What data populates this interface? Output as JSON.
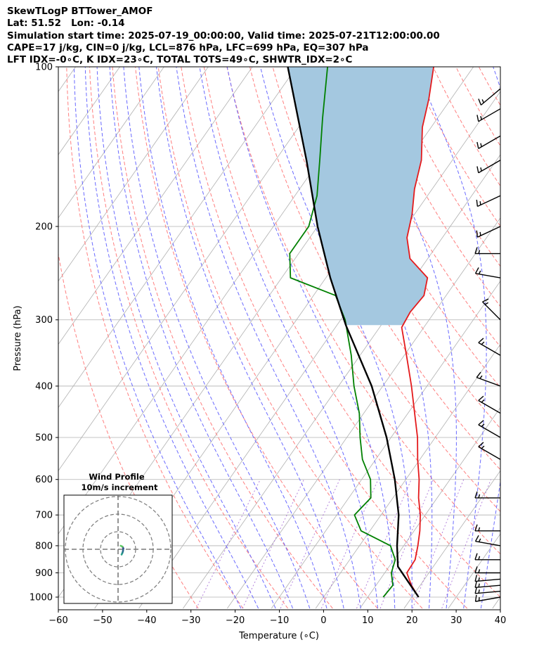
{
  "header": {
    "line1": "SkewTLogP BTTower_AMOF",
    "line2": "Lat: 51.52   Lon: -0.14",
    "line3": "Simulation start time: 2025-07-19_00:00:00, Valid time: 2025-07-21T12:00:00.00",
    "line4": "CAPE=17 j/kg, CIN=0 j/kg, LCL=876 hPa, LFC=699 hPa, EQ=307 hPa",
    "line5": "LFT IDX=-0∘C, K IDX=23∘C, TOTAL TOTS=49∘C, SHWTR_IDX=2∘C"
  },
  "colors": {
    "temperature": "#e41a1c",
    "dewpoint": "#008000",
    "parcel": "#000000",
    "cape_fill": "#a4c8e0",
    "dry_adiabat": "#ff7f7f",
    "moist_adiabat": "#6a6aff",
    "isotherm": "#b0b0b0",
    "mixing_ratio": "#9b59d0",
    "hodo_ring": "#7a7a7a"
  },
  "chart_data": {
    "type": "skewt",
    "xlabel": "Temperature (∘C)",
    "ylabel": "Pressure (hPa)",
    "xlim": [
      -60,
      40
    ],
    "ylim": [
      1050,
      100
    ],
    "x_ticks": [
      -60,
      -50,
      -40,
      -30,
      -20,
      -10,
      0,
      10,
      20,
      30,
      40
    ],
    "x_tick_labels": [
      "−60",
      "−50",
      "−40",
      "−30",
      "−20",
      "−10",
      "0",
      "10",
      "20",
      "30",
      "40"
    ],
    "y_ticks": [
      1000,
      900,
      800,
      700,
      600,
      500,
      400,
      300,
      200,
      100
    ],
    "temperature_profile": [
      {
        "p": 1000,
        "t": 21.5
      },
      {
        "p": 950,
        "t": 18.0
      },
      {
        "p": 900,
        "t": 15.0
      },
      {
        "p": 850,
        "t": 14.8
      },
      {
        "p": 800,
        "t": 13.2
      },
      {
        "p": 750,
        "t": 11.3
      },
      {
        "p": 700,
        "t": 8.9
      },
      {
        "p": 650,
        "t": 5.8
      },
      {
        "p": 600,
        "t": 3.0
      },
      {
        "p": 550,
        "t": -0.5
      },
      {
        "p": 500,
        "t": -4.0
      },
      {
        "p": 450,
        "t": -8.5
      },
      {
        "p": 400,
        "t": -13.5
      },
      {
        "p": 350,
        "t": -19.5
      },
      {
        "p": 310,
        "t": -25.0
      },
      {
        "p": 290,
        "t": -25.5
      },
      {
        "p": 270,
        "t": -25.0
      },
      {
        "p": 250,
        "t": -27.0
      },
      {
        "p": 230,
        "t": -34.0
      },
      {
        "p": 210,
        "t": -38.0
      },
      {
        "p": 190,
        "t": -40.5
      },
      {
        "p": 170,
        "t": -44.0
      },
      {
        "p": 150,
        "t": -47.0
      },
      {
        "p": 130,
        "t": -52.0
      },
      {
        "p": 115,
        "t": -55.0
      },
      {
        "p": 100,
        "t": -59.0
      }
    ],
    "dewpoint_profile": [
      {
        "p": 1000,
        "td": 13.5
      },
      {
        "p": 950,
        "td": 13.8
      },
      {
        "p": 900,
        "td": 11.5
      },
      {
        "p": 850,
        "td": 10.3
      },
      {
        "p": 800,
        "td": 7.0
      },
      {
        "p": 750,
        "td": -2.0
      },
      {
        "p": 700,
        "td": -6.0
      },
      {
        "p": 650,
        "td": -5.0
      },
      {
        "p": 600,
        "td": -8.0
      },
      {
        "p": 550,
        "td": -13.0
      },
      {
        "p": 500,
        "td": -17.0
      },
      {
        "p": 450,
        "td": -21.0
      },
      {
        "p": 400,
        "td": -26.5
      },
      {
        "p": 350,
        "td": -32.0
      },
      {
        "p": 300,
        "td": -39.0
      },
      {
        "p": 270,
        "td": -45.0
      },
      {
        "p": 250,
        "td": -58.0
      },
      {
        "p": 225,
        "td": -62.0
      },
      {
        "p": 200,
        "td": -62.0
      },
      {
        "p": 175,
        "td": -65.0
      },
      {
        "p": 150,
        "td": -70.0
      },
      {
        "p": 125,
        "td": -76.0
      },
      {
        "p": 100,
        "td": -83.0
      }
    ],
    "parcel_profile": [
      {
        "p": 1000,
        "t": 21.5
      },
      {
        "p": 876,
        "t": 12.0
      },
      {
        "p": 800,
        "t": 8.5
      },
      {
        "p": 700,
        "t": 4.0
      },
      {
        "p": 600,
        "t": -2.5
      },
      {
        "p": 500,
        "t": -11.0
      },
      {
        "p": 400,
        "t": -22.5
      },
      {
        "p": 307,
        "t": -38.0
      },
      {
        "p": 250,
        "t": -49.0
      },
      {
        "p": 200,
        "t": -60.0
      },
      {
        "p": 150,
        "t": -73.0
      },
      {
        "p": 100,
        "t": -92.0
      }
    ],
    "wind_barbs": [
      {
        "p": 1000,
        "speed_kt": 15,
        "dir_deg": 260
      },
      {
        "p": 975,
        "speed_kt": 15,
        "dir_deg": 265
      },
      {
        "p": 950,
        "speed_kt": 15,
        "dir_deg": 265
      },
      {
        "p": 925,
        "speed_kt": 15,
        "dir_deg": 265
      },
      {
        "p": 900,
        "speed_kt": 15,
        "dir_deg": 270
      },
      {
        "p": 850,
        "speed_kt": 15,
        "dir_deg": 270
      },
      {
        "p": 800,
        "speed_kt": 15,
        "dir_deg": 280
      },
      {
        "p": 750,
        "speed_kt": 15,
        "dir_deg": 270
      },
      {
        "p": 650,
        "speed_kt": 15,
        "dir_deg": 270
      },
      {
        "p": 550,
        "speed_kt": 15,
        "dir_deg": 300
      },
      {
        "p": 500,
        "speed_kt": 15,
        "dir_deg": 300
      },
      {
        "p": 450,
        "speed_kt": 15,
        "dir_deg": 300
      },
      {
        "p": 400,
        "speed_kt": 15,
        "dir_deg": 290
      },
      {
        "p": 350,
        "speed_kt": 15,
        "dir_deg": 300
      },
      {
        "p": 300,
        "speed_kt": 15,
        "dir_deg": 315
      },
      {
        "p": 250,
        "speed_kt": 15,
        "dir_deg": 280
      },
      {
        "p": 225,
        "speed_kt": 15,
        "dir_deg": 270
      },
      {
        "p": 200,
        "speed_kt": 15,
        "dir_deg": 245
      },
      {
        "p": 175,
        "speed_kt": 15,
        "dir_deg": 245
      },
      {
        "p": 150,
        "speed_kt": 15,
        "dir_deg": 240
      },
      {
        "p": 135,
        "speed_kt": 15,
        "dir_deg": 240
      },
      {
        "p": 120,
        "speed_kt": 15,
        "dir_deg": 240
      },
      {
        "p": 110,
        "speed_kt": 15,
        "dir_deg": 230
      }
    ],
    "hodograph": {
      "title": "Wind Profile",
      "subtitle": "10m/s increment",
      "ring_step_ms": 10,
      "points": [
        {
          "u": 2.0,
          "v": -3.0
        },
        {
          "u": 2.5,
          "v": -2.0
        },
        {
          "u": 2.8,
          "v": -1.0
        },
        {
          "u": 3.0,
          "v": 0.5
        },
        {
          "u": 2.5,
          "v": 1.5
        },
        {
          "u": 1.5,
          "v": 2.0
        }
      ]
    }
  }
}
